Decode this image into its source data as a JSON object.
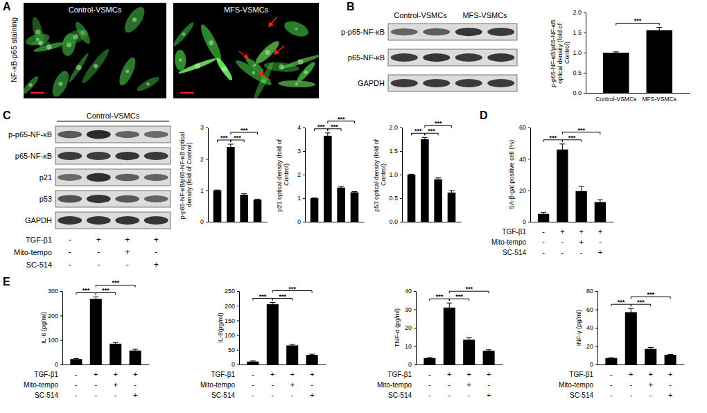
{
  "panels": {
    "A": {
      "letter": "A",
      "label": "NF-κB-p65 staining",
      "images": [
        "Control-VSMCs",
        "MFS-VSMCs"
      ]
    },
    "B": {
      "letter": "B",
      "groups": [
        "Control-VSMCs",
        "MFS-VSMCs"
      ],
      "rows": [
        "p-p65-NF-κB",
        "p65-NF-κB",
        "GAPDH"
      ]
    },
    "C": {
      "letter": "C",
      "header": "Control-VSMCs",
      "rows": [
        "p-p65-NF-κB",
        "p65-NF-κB",
        "p21",
        "p53",
        "GAPDH"
      ],
      "treatments": [
        {
          "name": "TGF-β1",
          "values": [
            "-",
            "+",
            "+",
            "+"
          ]
        },
        {
          "name": "Mito-tempo",
          "values": [
            "-",
            "-",
            "+",
            "-"
          ]
        },
        {
          "name": "SC-514",
          "values": [
            "-",
            "-",
            "-",
            "+"
          ]
        }
      ]
    },
    "D": {
      "letter": "D"
    },
    "E": {
      "letter": "E"
    }
  },
  "chart_data": [
    {
      "type": "bar",
      "ylabel": "p-p65-NF-κB/p65-NF-κB optical density (fold of Control)",
      "categories": [
        "Control-VSMCs",
        "MFS-VSMCs"
      ],
      "values": [
        1.0,
        1.56
      ],
      "errors": [
        0.02,
        0.07
      ],
      "color": "#000000",
      "ylim": [
        0,
        2
      ],
      "yticks": [
        {
          "value": 0,
          "label": "0.0"
        },
        {
          "value": 0.5,
          "label": "0.5"
        },
        {
          "value": 1,
          "label": "1.0"
        },
        {
          "value": 1.5,
          "label": "1.5"
        },
        {
          "value": 2,
          "label": "2.0"
        }
      ],
      "annotations": [
        {
          "from": 0,
          "to": 1,
          "text": "***"
        }
      ]
    },
    {
      "type": "bar",
      "ylabel": "p-p65-NF-κB/p65-NF-κB optical density (fold of Control)",
      "categories": [
        null,
        null,
        null,
        null
      ],
      "values": [
        1.0,
        2.38,
        0.86,
        0.7
      ],
      "errors": [
        0.01,
        0.09,
        0.03,
        0.02
      ],
      "color": "#000000",
      "ylim": [
        0,
        3
      ],
      "yticks": [
        0,
        1,
        2,
        3
      ],
      "annotations": [
        {
          "from": 0,
          "to": 1,
          "text": "***"
        },
        {
          "from": 1,
          "to": 2,
          "text": "***"
        },
        {
          "from": 1,
          "to": 3,
          "text": "***"
        }
      ]
    },
    {
      "type": "bar",
      "ylabel": "p21 optical density (fold of Control)",
      "categories": [
        null,
        null,
        null,
        null
      ],
      "values": [
        1.0,
        3.65,
        1.45,
        1.25
      ],
      "errors": [
        0.01,
        0.12,
        0.05,
        0.03
      ],
      "color": "#000000",
      "ylim": [
        0,
        4
      ],
      "yticks": [
        0,
        1,
        2,
        3,
        4
      ],
      "annotations": [
        {
          "from": 0,
          "to": 1,
          "text": "***"
        },
        {
          "from": 1,
          "to": 2,
          "text": "***"
        },
        {
          "from": 1,
          "to": 3,
          "text": "***"
        }
      ]
    },
    {
      "type": "bar",
      "ylabel": "p53 optical density (fold of Control)",
      "categories": [
        null,
        null,
        null,
        null
      ],
      "values": [
        1.0,
        1.75,
        0.9,
        0.62
      ],
      "errors": [
        0.01,
        0.04,
        0.03,
        0.04
      ],
      "color": "#000000",
      "ylim": [
        0,
        2
      ],
      "yticks": [
        {
          "value": 0,
          "label": "0.0"
        },
        {
          "value": 0.5,
          "label": "0.5"
        },
        {
          "value": 1,
          "label": "1.0"
        },
        {
          "value": 1.5,
          "label": "1.5"
        },
        {
          "value": 2,
          "label": "2.0"
        }
      ],
      "annotations": [
        {
          "from": 0,
          "to": 1,
          "text": "***"
        },
        {
          "from": 1,
          "to": 2,
          "text": "***"
        },
        {
          "from": 1,
          "to": 3,
          "text": "***"
        }
      ]
    },
    {
      "type": "bar",
      "ylabel": "SA-β-gal positive cell (%)",
      "categories": [
        null,
        null,
        null,
        null
      ],
      "values": [
        5,
        46,
        19.5,
        12.5
      ],
      "errors": [
        1,
        3.5,
        3,
        1.5
      ],
      "color": "#000000",
      "ylim": [
        0,
        60
      ],
      "yticks": [
        0,
        20,
        40,
        60
      ],
      "annotations": [
        {
          "from": 0,
          "to": 1,
          "text": "***"
        },
        {
          "from": 1,
          "to": 2,
          "text": "***"
        },
        {
          "from": 1,
          "to": 3,
          "text": "***"
        }
      ],
      "treatments": [
        {
          "name": "TGF-β1",
          "values": [
            "-",
            "+",
            "+",
            "+"
          ]
        },
        {
          "name": "Mito-tempo",
          "values": [
            "-",
            "-",
            "+",
            "-"
          ]
        },
        {
          "name": "SC-514",
          "values": [
            "-",
            "-",
            "-",
            "+"
          ]
        }
      ]
    },
    {
      "type": "bar",
      "ylabel": "IL-6 (pg/ml)",
      "categories": [
        null,
        null,
        null,
        null
      ],
      "values": [
        22,
        268,
        85,
        57
      ],
      "errors": [
        2,
        8,
        5,
        5
      ],
      "color": "#000000",
      "ylim": [
        0,
        300
      ],
      "yticks": [
        0,
        100,
        200,
        300
      ],
      "annotations": [
        {
          "from": 0,
          "to": 1,
          "text": "***"
        },
        {
          "from": 1,
          "to": 2,
          "text": "***"
        },
        {
          "from": 1,
          "to": 3,
          "text": "***"
        }
      ],
      "treatments": [
        {
          "name": "TGF-β1",
          "values": [
            "-",
            "+",
            "+",
            "+"
          ]
        },
        {
          "name": "Mito-tempo",
          "values": [
            "-",
            "-",
            "+",
            "-"
          ]
        },
        {
          "name": "SC-514",
          "values": [
            "-",
            "-",
            "-",
            "+"
          ]
        }
      ]
    },
    {
      "type": "bar",
      "ylabel": "IL-8(pg/ml)",
      "categories": [
        null,
        null,
        null,
        null
      ],
      "values": [
        10,
        205,
        65,
        33
      ],
      "errors": [
        2,
        6,
        3,
        2
      ],
      "color": "#000000",
      "ylim": [
        0,
        250
      ],
      "yticks": [
        0,
        50,
        100,
        150,
        200,
        250
      ],
      "annotations": [
        {
          "from": 0,
          "to": 1,
          "text": "***"
        },
        {
          "from": 1,
          "to": 2,
          "text": "***"
        },
        {
          "from": 1,
          "to": 3,
          "text": "***"
        }
      ],
      "treatments": [
        {
          "name": "TGF-β1",
          "values": [
            "-",
            "+",
            "+",
            "+"
          ]
        },
        {
          "name": "Mito-tempo",
          "values": [
            "-",
            "-",
            "+",
            "-"
          ]
        },
        {
          "name": "SC-514",
          "values": [
            "-",
            "-",
            "-",
            "+"
          ]
        }
      ]
    },
    {
      "type": "bar",
      "ylabel": "TNF-α (pg/ml)",
      "categories": [
        null,
        null,
        null,
        null
      ],
      "values": [
        3.5,
        31,
        13.5,
        7.5
      ],
      "errors": [
        0.3,
        2.5,
        1,
        0.5
      ],
      "color": "#000000",
      "ylim": [
        0,
        40
      ],
      "yticks": [
        0,
        10,
        20,
        30,
        40
      ],
      "annotations": [
        {
          "from": 0,
          "to": 1,
          "text": "***"
        },
        {
          "from": 1,
          "to": 2,
          "text": "***"
        },
        {
          "from": 1,
          "to": 3,
          "text": "***"
        }
      ],
      "treatments": [
        {
          "name": "TGF-β1",
          "values": [
            "-",
            "+",
            "+",
            "+"
          ]
        },
        {
          "name": "Mito-tempo",
          "values": [
            "-",
            "-",
            "+",
            "-"
          ]
        },
        {
          "name": "SC-514",
          "values": [
            "-",
            "-",
            "-",
            "+"
          ]
        }
      ]
    },
    {
      "type": "bar",
      "ylabel": "INF-γ (pg/ml)",
      "categories": [
        null,
        null,
        null,
        null
      ],
      "values": [
        7,
        57,
        17,
        10.5
      ],
      "errors": [
        0.5,
        4,
        1.5,
        0.5
      ],
      "color": "#000000",
      "ylim": [
        0,
        80
      ],
      "yticks": [
        0,
        20,
        40,
        60,
        80
      ],
      "annotations": [
        {
          "from": 0,
          "to": 1,
          "text": "***"
        },
        {
          "from": 1,
          "to": 2,
          "text": "***"
        },
        {
          "from": 1,
          "to": 3,
          "text": "***"
        }
      ],
      "treatments": [
        {
          "name": "TGF-β1",
          "values": [
            "-",
            "+",
            "+",
            "+"
          ]
        },
        {
          "name": "Mito-tempo",
          "values": [
            "-",
            "-",
            "+",
            "-"
          ]
        },
        {
          "name": "SC-514",
          "values": [
            "-",
            "-",
            "-",
            "+"
          ]
        }
      ]
    }
  ]
}
